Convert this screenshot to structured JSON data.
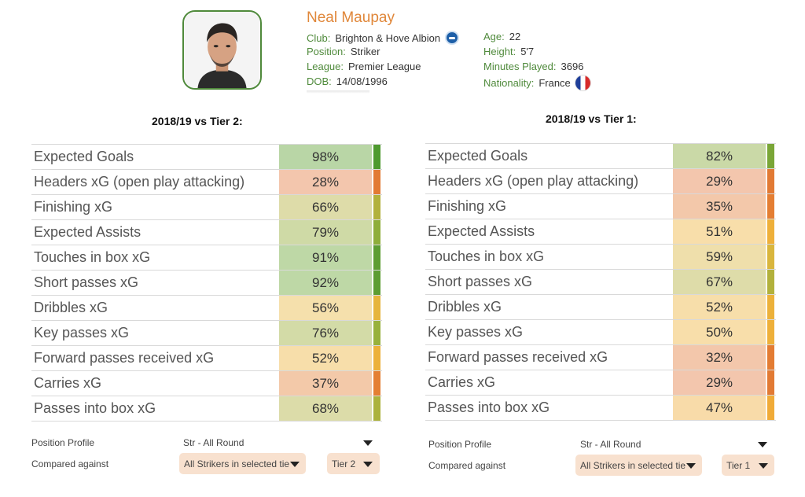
{
  "player": {
    "name": "Neal Maupay",
    "photo_icon": "player-photo",
    "club_label": "Club:",
    "club": "Brighton & Hove Albion",
    "position_label": "Position:",
    "position": "Striker",
    "league_label": "League:",
    "league": "Premier League",
    "dob_label": "DOB:",
    "dob": "14/08/1996",
    "age_label": "Age:",
    "age": "22",
    "height_label": "Height:",
    "height": "5'7",
    "minutes_label": "Minutes Played:",
    "minutes": "3696",
    "nationality_label": "Nationality:",
    "nationality": "France",
    "club_icon": "club-badge-icon",
    "nationality_icon": "france-flag-icon"
  },
  "colors": {
    "name": "#e0873a",
    "label_green": "#4f8a3b",
    "dropdown_bg": "#f8e1cf"
  },
  "panels": [
    {
      "title": "2018/19 vs Tier 2:",
      "rows": [
        {
          "label": "Expected Goals",
          "value": "98%",
          "pct": 98,
          "cell": "#b9d6a6",
          "bar": "#4e9a2f"
        },
        {
          "label": "Headers xG (open play attacking)",
          "value": "28%",
          "pct": 28,
          "cell": "#f3c6ad",
          "bar": "#e27a34"
        },
        {
          "label": "Finishing xG",
          "value": "66%",
          "pct": 66,
          "cell": "#dedca9",
          "bar": "#b2b13c"
        },
        {
          "label": "Expected Assists",
          "value": "79%",
          "pct": 79,
          "cell": "#cfdaa6",
          "bar": "#8fae3a"
        },
        {
          "label": "Touches in box xG",
          "value": "91%",
          "pct": 91,
          "cell": "#bed8a6",
          "bar": "#5d9d32"
        },
        {
          "label": "Short passes xG",
          "value": "92%",
          "pct": 92,
          "cell": "#bed8a6",
          "bar": "#5d9d32"
        },
        {
          "label": "Dribbles xG",
          "value": "56%",
          "pct": 56,
          "cell": "#f5e0ac",
          "bar": "#e6b53d"
        },
        {
          "label": "Key passes xG",
          "value": "76%",
          "pct": 76,
          "cell": "#d3dba7",
          "bar": "#98b13b"
        },
        {
          "label": "Forward passes received xG",
          "value": "52%",
          "pct": 52,
          "cell": "#f7deaa",
          "bar": "#ecb13a"
        },
        {
          "label": "Carries xG",
          "value": "37%",
          "pct": 37,
          "cell": "#f3c9a9",
          "bar": "#e47f33"
        },
        {
          "label": "Passes into box xG",
          "value": "68%",
          "pct": 68,
          "cell": "#dcdca9",
          "bar": "#acb23c"
        }
      ],
      "position_profile_label": "Position Profile",
      "position_profile_value": "Str - All Round",
      "compared_label": "Compared against",
      "compared_value": "All Strikers in selected tie",
      "tier_value": "Tier 2"
    },
    {
      "title": "2018/19 vs Tier 1:",
      "rows": [
        {
          "label": "Expected Goals",
          "value": "82%",
          "pct": 82,
          "cell": "#cad9a7",
          "bar": "#7aa637"
        },
        {
          "label": "Headers xG (open play attacking)",
          "value": "29%",
          "pct": 29,
          "cell": "#f3c6ad",
          "bar": "#e27a34"
        },
        {
          "label": "Finishing xG",
          "value": "35%",
          "pct": 35,
          "cell": "#f3c8aa",
          "bar": "#e47e33"
        },
        {
          "label": "Expected Assists",
          "value": "51%",
          "pct": 51,
          "cell": "#f8deaa",
          "bar": "#eeb03a"
        },
        {
          "label": "Touches in box xG",
          "value": "59%",
          "pct": 59,
          "cell": "#efdfab",
          "bar": "#d9b63d"
        },
        {
          "label": "Short passes xG",
          "value": "67%",
          "pct": 67,
          "cell": "#dedca9",
          "bar": "#b2b13c"
        },
        {
          "label": "Dribbles xG",
          "value": "52%",
          "pct": 52,
          "cell": "#f7deaa",
          "bar": "#ecb13a"
        },
        {
          "label": "Key passes xG",
          "value": "50%",
          "pct": 50,
          "cell": "#f8deaa",
          "bar": "#eeb03a"
        },
        {
          "label": "Forward passes received xG",
          "value": "32%",
          "pct": 32,
          "cell": "#f3c7ab",
          "bar": "#e37c33"
        },
        {
          "label": "Carries xG",
          "value": "29%",
          "pct": 29,
          "cell": "#f3c6ad",
          "bar": "#e27a34"
        },
        {
          "label": "Passes into box xG",
          "value": "47%",
          "pct": 47,
          "cell": "#f8dba9",
          "bar": "#f0ab38"
        }
      ],
      "position_profile_label": "Position Profile",
      "position_profile_value": "Str - All Round",
      "compared_label": "Compared against",
      "compared_value": "All Strikers in selected tie",
      "tier_value": "Tier 1"
    }
  ]
}
